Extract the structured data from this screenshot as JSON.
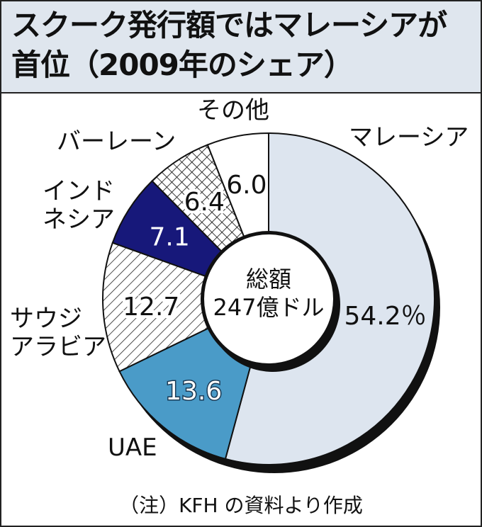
{
  "chart_data": {
    "type": "pie",
    "title": "スクーク発行額ではマレーシアが首位（2009年のシェア）",
    "categories": [
      "マレーシア",
      "UAE",
      "サウジ\nアラビア",
      "インド\nネシア",
      "バーレーン",
      "その他"
    ],
    "values": [
      54.2,
      13.6,
      12.7,
      7.1,
      6.4,
      6.0
    ],
    "value_labels": [
      "54.2％",
      "13.6",
      "12.7",
      "7.1",
      "6.4",
      "6.0"
    ],
    "colors": [
      "#dde5ef",
      "#4a9bc8",
      "#ffffff",
      "#17187a",
      "#ffffff",
      "#ffffff"
    ],
    "hatches": [
      null,
      null,
      "diagonal",
      null,
      "cross",
      null
    ],
    "center_label": "総額\n247億ドル",
    "note": "（注）KFH の資料より作成"
  }
}
